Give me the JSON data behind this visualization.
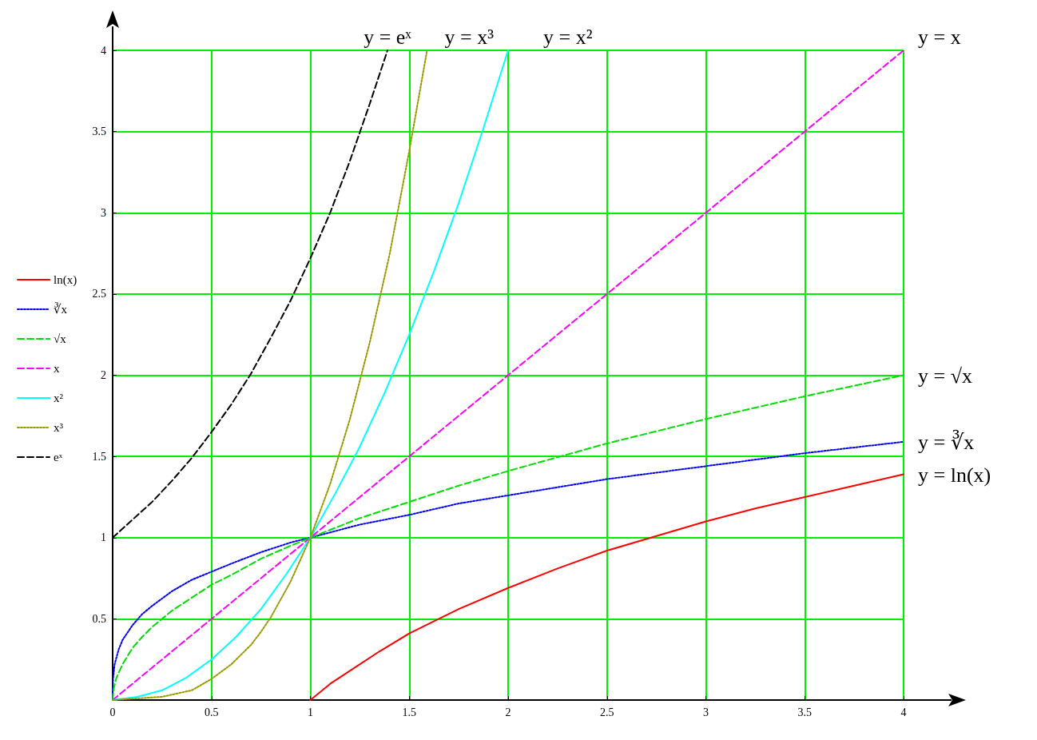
{
  "chart_data": {
    "type": "line",
    "xlim": [
      0,
      4
    ],
    "ylim": [
      0,
      4
    ],
    "xticks": [
      0,
      0.5,
      1,
      1.5,
      2,
      2.5,
      3,
      3.5,
      4
    ],
    "yticks": [
      {
        "value": 0,
        "label": null
      },
      0.5,
      1,
      1.5,
      2,
      2.5,
      3,
      3.5,
      4
    ],
    "grid": true,
    "legend": "left",
    "marker": "none",
    "series": [
      {
        "name": "ln(x)",
        "color": "#ff0000",
        "line_style": "solid",
        "x": [
          1,
          1.1,
          1.2,
          1.35,
          1.5,
          1.75,
          2,
          2.25,
          2.5,
          2.75,
          3,
          3.25,
          3.5,
          3.75,
          4
        ],
        "values": [
          0,
          0.1,
          0.18,
          0.3,
          0.41,
          0.56,
          0.69,
          0.81,
          0.92,
          1.01,
          1.1,
          1.18,
          1.25,
          1.32,
          1.39
        ]
      },
      {
        "name": "∛x",
        "color": "#0000ff",
        "line_style": "dotted",
        "x": [
          0,
          0.002,
          0.01,
          0.03,
          0.05,
          0.1,
          0.15,
          0.2,
          0.3,
          0.4,
          0.5,
          0.6,
          0.75,
          0.9,
          1,
          1.25,
          1.5,
          1.75,
          2,
          2.5,
          3,
          3.5,
          4
        ],
        "values": [
          0,
          0.13,
          0.22,
          0.31,
          0.37,
          0.46,
          0.53,
          0.58,
          0.67,
          0.74,
          0.79,
          0.84,
          0.91,
          0.97,
          1,
          1.08,
          1.14,
          1.21,
          1.26,
          1.36,
          1.44,
          1.52,
          1.59
        ]
      },
      {
        "name": "√x",
        "color": "#00dd00",
        "line_style": "dashed",
        "x": [
          0,
          0.005,
          0.02,
          0.05,
          0.1,
          0.15,
          0.2,
          0.3,
          0.4,
          0.5,
          0.6,
          0.75,
          0.9,
          1,
          1.25,
          1.5,
          1.75,
          2,
          2.5,
          3,
          3.5,
          4
        ],
        "values": [
          0,
          0.07,
          0.14,
          0.22,
          0.32,
          0.39,
          0.45,
          0.55,
          0.63,
          0.71,
          0.77,
          0.87,
          0.95,
          1,
          1.12,
          1.22,
          1.32,
          1.41,
          1.58,
          1.73,
          1.87,
          2
        ]
      },
      {
        "name": "x",
        "color": "#ff00ff",
        "line_style": "dashed",
        "x": [
          0,
          1,
          2,
          3,
          4
        ],
        "values": [
          0,
          1,
          2,
          3,
          4
        ]
      },
      {
        "name": "x²",
        "color": "#00ffff",
        "line_style": "solid",
        "x": [
          0,
          0.125,
          0.25,
          0.375,
          0.5,
          0.625,
          0.75,
          0.875,
          1,
          1.125,
          1.25,
          1.375,
          1.5,
          1.625,
          1.75,
          1.875,
          2
        ],
        "values": [
          0,
          0.02,
          0.06,
          0.14,
          0.25,
          0.39,
          0.56,
          0.77,
          1,
          1.27,
          1.56,
          1.89,
          2.25,
          2.64,
          3.06,
          3.52,
          4
        ]
      },
      {
        "name": "x³",
        "color": "#999900",
        "line_style": "dotted",
        "x": [
          0,
          0.25,
          0.4,
          0.5,
          0.6,
          0.7,
          0.75,
          0.8,
          0.9,
          1,
          1.1,
          1.2,
          1.3,
          1.4,
          1.5,
          1.59
        ],
        "values": [
          0,
          0.02,
          0.06,
          0.13,
          0.22,
          0.34,
          0.42,
          0.51,
          0.73,
          1,
          1.33,
          1.73,
          2.2,
          2.74,
          3.38,
          4
        ]
      },
      {
        "name": "eˣ",
        "color": "#000000",
        "line_style": "dashed",
        "x": [
          0,
          0.1,
          0.2,
          0.3,
          0.4,
          0.5,
          0.6,
          0.7,
          0.8,
          0.9,
          1,
          1.1,
          1.2,
          1.3,
          1.39
        ],
        "values": [
          1,
          1.11,
          1.22,
          1.35,
          1.49,
          1.65,
          1.82,
          2.01,
          2.23,
          2.46,
          2.72,
          3,
          3.32,
          3.67,
          4
        ]
      }
    ],
    "annotations": [
      {
        "text": "y = eˣ",
        "x": 1.39,
        "y": 4
      },
      {
        "text": "y = x³",
        "x": 1.59,
        "y": 4
      },
      {
        "text": "y = x²",
        "x": 2,
        "y": 4
      },
      {
        "text": "y = x",
        "x": 4,
        "y": 4
      },
      {
        "text": "y = √x",
        "x": 4,
        "y": 2
      },
      {
        "text": "y = ∛x",
        "x": 4,
        "y": 1.59
      },
      {
        "text": "y = ln(x)",
        "x": 4,
        "y": 1.39
      }
    ]
  }
}
